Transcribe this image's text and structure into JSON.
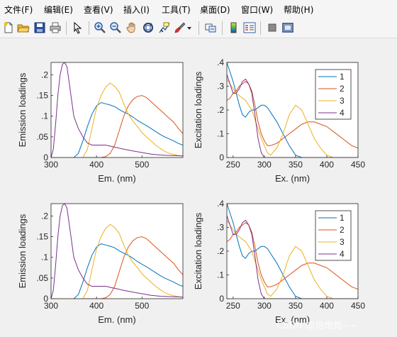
{
  "menu": [
    "文件(F)",
    "编辑(E)",
    "查看(V)",
    "插入(I)",
    "工具(T)",
    "桌面(D)",
    "窗口(W)",
    "帮助(H)"
  ],
  "toolbar": {
    "buttons": [
      "new-file-icon",
      "open-folder-icon",
      "save-icon",
      "print-icon",
      "pointer-icon",
      "zoom-in-icon",
      "zoom-out-icon",
      "pan-hand-icon",
      "rotate-3d-icon",
      "data-cursor-icon",
      "brush-icon",
      "link-plot-icon",
      "colorbar-icon",
      "legend-icon",
      "hide-plot-tools-icon",
      "show-plot-tools-icon"
    ]
  },
  "watermark": "CSDN @炮炮炮~~",
  "colors": {
    "c1": "#0072BD",
    "c2": "#D95319",
    "c3": "#EDB120",
    "c4": "#7E2F8E"
  },
  "chart_data": [
    {
      "type": "line",
      "id": "em1",
      "xlabel": "Em. (nm)",
      "ylabel": "Emission loadings",
      "xlim": [
        300,
        590
      ],
      "ylim": [
        0,
        0.23
      ],
      "xticks": [
        300,
        400,
        500
      ],
      "yticks": [
        0,
        0.05,
        0.1,
        0.15,
        0.2
      ],
      "series": [
        {
          "x": [
            300,
            310,
            320,
            330,
            340,
            350,
            360,
            370,
            380,
            390,
            400,
            410,
            420,
            430,
            440,
            450,
            460,
            470,
            480,
            490,
            500,
            510,
            520,
            530,
            540,
            550,
            560,
            570,
            580,
            590
          ],
          "y": [
            0,
            0,
            0,
            0,
            0,
            0,
            0.01,
            0.04,
            0.075,
            0.105,
            0.125,
            0.133,
            0.13,
            0.127,
            0.123,
            0.116,
            0.11,
            0.105,
            0.098,
            0.09,
            0.083,
            0.077,
            0.07,
            0.063,
            0.056,
            0.05,
            0.045,
            0.04,
            0.034,
            0.03
          ]
        },
        {
          "x": [
            300,
            320,
            340,
            360,
            380,
            400,
            410,
            420,
            430,
            440,
            450,
            460,
            470,
            480,
            490,
            500,
            510,
            520,
            530,
            540,
            550,
            560,
            570,
            580,
            590
          ],
          "y": [
            0,
            0,
            0,
            0,
            0,
            0,
            0,
            0.002,
            0.01,
            0.03,
            0.065,
            0.1,
            0.125,
            0.14,
            0.148,
            0.15,
            0.145,
            0.135,
            0.125,
            0.115,
            0.105,
            0.095,
            0.085,
            0.07,
            0.058
          ]
        },
        {
          "x": [
            300,
            320,
            340,
            360,
            370,
            380,
            390,
            400,
            410,
            420,
            430,
            440,
            450,
            460,
            470,
            480,
            490,
            500,
            510,
            520,
            530,
            540,
            550,
            560,
            570,
            580,
            590
          ],
          "y": [
            0,
            0,
            0,
            0,
            0,
            0.02,
            0.07,
            0.12,
            0.15,
            0.17,
            0.18,
            0.172,
            0.158,
            0.13,
            0.105,
            0.088,
            0.075,
            0.06,
            0.05,
            0.04,
            0.03,
            0.022,
            0.015,
            0.01,
            0.007,
            0.005,
            0.003
          ]
        },
        {
          "x": [
            300,
            305,
            310,
            315,
            320,
            325,
            330,
            335,
            340,
            345,
            350,
            360,
            370,
            380,
            390,
            400,
            420,
            440,
            460,
            480,
            500,
            520,
            540,
            560,
            590
          ],
          "y": [
            0,
            0.02,
            0.08,
            0.15,
            0.2,
            0.225,
            0.23,
            0.22,
            0.18,
            0.14,
            0.1,
            0.07,
            0.05,
            0.035,
            0.03,
            0.03,
            0.03,
            0.025,
            0.02,
            0.016,
            0.012,
            0.008,
            0.006,
            0.005,
            0.004
          ]
        }
      ]
    },
    {
      "type": "line",
      "id": "ex1",
      "xlabel": "Ex. (nm)",
      "ylabel": "Excitation loadings",
      "xlim": [
        240,
        450
      ],
      "ylim": [
        0,
        0.4
      ],
      "xticks": [
        250,
        300,
        350,
        400,
        450
      ],
      "yticks": [
        0,
        0.1,
        0.2,
        0.3,
        0.4
      ],
      "legend": [
        "1",
        "2",
        "3",
        "4"
      ],
      "legend_loc": "top-right",
      "series": [
        {
          "x": [
            240,
            245,
            250,
            255,
            260,
            265,
            270,
            275,
            280,
            285,
            290,
            295,
            300,
            305,
            310,
            320,
            330,
            340,
            350,
            360,
            370,
            380,
            390,
            400,
            410,
            420,
            430,
            440,
            450
          ],
          "y": [
            0.4,
            0.36,
            0.32,
            0.27,
            0.22,
            0.18,
            0.17,
            0.19,
            0.2,
            0.2,
            0.21,
            0.22,
            0.22,
            0.21,
            0.19,
            0.15,
            0.1,
            0.05,
            0.01,
            0,
            0,
            0,
            0,
            0,
            0,
            0,
            0,
            0,
            0
          ]
        },
        {
          "x": [
            240,
            245,
            250,
            255,
            260,
            265,
            270,
            275,
            280,
            285,
            290,
            295,
            300,
            305,
            310,
            320,
            330,
            340,
            350,
            360,
            370,
            380,
            390,
            400,
            410,
            420,
            430,
            440,
            450
          ],
          "y": [
            0.24,
            0.25,
            0.27,
            0.28,
            0.3,
            0.31,
            0.32,
            0.31,
            0.28,
            0.22,
            0.15,
            0.1,
            0.07,
            0.05,
            0.05,
            0.06,
            0.08,
            0.1,
            0.12,
            0.14,
            0.15,
            0.15,
            0.14,
            0.13,
            0.11,
            0.09,
            0.07,
            0.05,
            0.04
          ]
        },
        {
          "x": [
            240,
            245,
            250,
            255,
            260,
            265,
            270,
            275,
            280,
            285,
            290,
            295,
            300,
            305,
            310,
            320,
            330,
            340,
            350,
            360,
            370,
            380,
            390,
            400,
            410,
            420,
            430,
            440,
            450
          ],
          "y": [
            0.33,
            0.31,
            0.29,
            0.27,
            0.26,
            0.25,
            0.24,
            0.22,
            0.2,
            0.16,
            0.12,
            0.08,
            0.05,
            0.02,
            0.01,
            0.04,
            0.1,
            0.18,
            0.22,
            0.2,
            0.14,
            0.08,
            0.04,
            0.01,
            0,
            0,
            0,
            0,
            0
          ]
        },
        {
          "x": [
            240,
            245,
            250,
            255,
            260,
            265,
            270,
            275,
            280,
            285,
            290,
            295,
            300,
            305,
            310,
            320,
            330,
            340,
            350,
            360,
            370,
            380,
            390,
            400,
            410,
            420,
            430,
            440,
            450
          ],
          "y": [
            0.35,
            0.31,
            0.27,
            0.27,
            0.29,
            0.32,
            0.33,
            0.31,
            0.27,
            0.18,
            0.08,
            0.02,
            0,
            0,
            0,
            0,
            0,
            0,
            0,
            0,
            0,
            0,
            0,
            0,
            0,
            0,
            0,
            0,
            0
          ]
        }
      ]
    },
    {
      "type": "line",
      "id": "em2",
      "xlabel": "Em. (nm)",
      "ylabel": "Emission loadings",
      "xlim": [
        300,
        590
      ],
      "ylim": [
        0,
        0.23
      ],
      "xticks": [
        300,
        400,
        500
      ],
      "yticks": [
        0,
        0.05,
        0.1,
        0.15,
        0.2
      ],
      "series": [
        {
          "x": [
            300,
            310,
            320,
            330,
            340,
            350,
            360,
            370,
            380,
            390,
            400,
            410,
            420,
            430,
            440,
            450,
            460,
            470,
            480,
            490,
            500,
            510,
            520,
            530,
            540,
            550,
            560,
            570,
            580,
            590
          ],
          "y": [
            0,
            0,
            0,
            0,
            0,
            0,
            0.01,
            0.04,
            0.075,
            0.105,
            0.125,
            0.133,
            0.13,
            0.127,
            0.123,
            0.116,
            0.11,
            0.105,
            0.098,
            0.09,
            0.083,
            0.077,
            0.07,
            0.063,
            0.056,
            0.05,
            0.045,
            0.04,
            0.034,
            0.03
          ]
        },
        {
          "x": [
            300,
            320,
            340,
            360,
            380,
            400,
            410,
            420,
            430,
            440,
            450,
            460,
            470,
            480,
            490,
            500,
            510,
            520,
            530,
            540,
            550,
            560,
            570,
            580,
            590
          ],
          "y": [
            0,
            0,
            0,
            0,
            0,
            0,
            0,
            0.002,
            0.01,
            0.03,
            0.065,
            0.1,
            0.125,
            0.14,
            0.148,
            0.15,
            0.145,
            0.135,
            0.125,
            0.115,
            0.105,
            0.095,
            0.085,
            0.07,
            0.058
          ]
        },
        {
          "x": [
            300,
            320,
            340,
            360,
            370,
            380,
            390,
            400,
            410,
            420,
            430,
            440,
            450,
            460,
            470,
            480,
            490,
            500,
            510,
            520,
            530,
            540,
            550,
            560,
            570,
            580,
            590
          ],
          "y": [
            0,
            0,
            0,
            0,
            0,
            0.02,
            0.07,
            0.12,
            0.15,
            0.17,
            0.18,
            0.172,
            0.158,
            0.13,
            0.105,
            0.088,
            0.075,
            0.06,
            0.05,
            0.04,
            0.03,
            0.022,
            0.015,
            0.01,
            0.007,
            0.005,
            0.003
          ]
        },
        {
          "x": [
            300,
            305,
            310,
            315,
            320,
            325,
            330,
            335,
            340,
            345,
            350,
            360,
            370,
            380,
            390,
            400,
            420,
            440,
            460,
            480,
            500,
            520,
            540,
            560,
            590
          ],
          "y": [
            0,
            0.02,
            0.08,
            0.15,
            0.2,
            0.225,
            0.23,
            0.22,
            0.18,
            0.14,
            0.1,
            0.07,
            0.05,
            0.035,
            0.03,
            0.03,
            0.03,
            0.025,
            0.02,
            0.016,
            0.012,
            0.008,
            0.006,
            0.005,
            0.004
          ]
        }
      ]
    },
    {
      "type": "line",
      "id": "ex2",
      "xlabel": "Ex. (nm)",
      "ylabel": "Excitation loadings",
      "xlim": [
        240,
        450
      ],
      "ylim": [
        0,
        0.4
      ],
      "xticks": [
        250,
        300,
        350,
        400,
        450
      ],
      "yticks": [
        0,
        0.1,
        0.2,
        0.3,
        0.4
      ],
      "legend": [
        "1",
        "2",
        "3",
        "4"
      ],
      "legend_loc": "top-right",
      "series": [
        {
          "x": [
            240,
            245,
            250,
            255,
            260,
            265,
            270,
            275,
            280,
            285,
            290,
            295,
            300,
            305,
            310,
            320,
            330,
            340,
            350,
            360,
            370,
            380,
            390,
            400,
            410,
            420,
            430,
            440,
            450
          ],
          "y": [
            0.4,
            0.36,
            0.32,
            0.27,
            0.22,
            0.18,
            0.17,
            0.19,
            0.2,
            0.2,
            0.21,
            0.22,
            0.22,
            0.21,
            0.19,
            0.15,
            0.1,
            0.05,
            0.01,
            0,
            0,
            0,
            0,
            0,
            0,
            0,
            0,
            0,
            0
          ]
        },
        {
          "x": [
            240,
            245,
            250,
            255,
            260,
            265,
            270,
            275,
            280,
            285,
            290,
            295,
            300,
            305,
            310,
            320,
            330,
            340,
            350,
            360,
            370,
            380,
            390,
            400,
            410,
            420,
            430,
            440,
            450
          ],
          "y": [
            0.24,
            0.25,
            0.27,
            0.28,
            0.3,
            0.31,
            0.32,
            0.31,
            0.28,
            0.22,
            0.15,
            0.1,
            0.07,
            0.05,
            0.05,
            0.06,
            0.08,
            0.1,
            0.12,
            0.14,
            0.15,
            0.15,
            0.14,
            0.13,
            0.11,
            0.09,
            0.07,
            0.05,
            0.04
          ]
        },
        {
          "x": [
            240,
            245,
            250,
            255,
            260,
            265,
            270,
            275,
            280,
            285,
            290,
            295,
            300,
            305,
            310,
            320,
            330,
            340,
            350,
            360,
            370,
            380,
            390,
            400,
            410,
            420,
            430,
            440,
            450
          ],
          "y": [
            0.33,
            0.31,
            0.29,
            0.27,
            0.26,
            0.25,
            0.24,
            0.22,
            0.2,
            0.16,
            0.12,
            0.08,
            0.05,
            0.02,
            0.01,
            0.04,
            0.1,
            0.18,
            0.22,
            0.2,
            0.14,
            0.08,
            0.04,
            0.01,
            0,
            0,
            0,
            0,
            0
          ]
        },
        {
          "x": [
            240,
            245,
            250,
            255,
            260,
            265,
            270,
            275,
            280,
            285,
            290,
            295,
            300,
            305,
            310,
            320,
            330,
            340,
            350,
            360,
            370,
            380,
            390,
            400,
            410,
            420,
            430,
            440,
            450
          ],
          "y": [
            0.35,
            0.31,
            0.27,
            0.27,
            0.29,
            0.32,
            0.33,
            0.31,
            0.27,
            0.18,
            0.08,
            0.02,
            0,
            0,
            0,
            0,
            0,
            0,
            0,
            0,
            0,
            0,
            0,
            0,
            0,
            0,
            0,
            0,
            0
          ]
        }
      ]
    }
  ]
}
